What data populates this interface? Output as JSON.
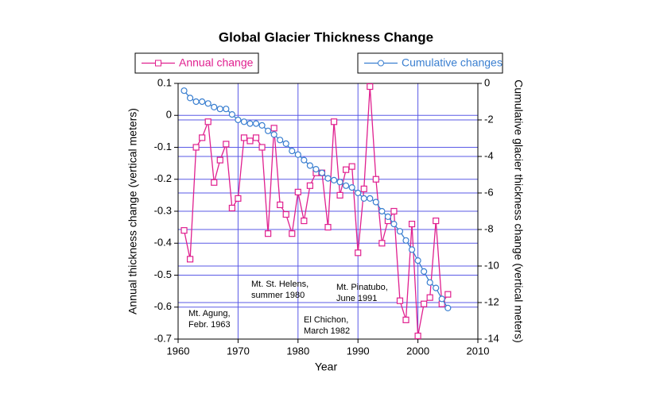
{
  "chart_data": {
    "type": "line",
    "title": "Global Glacier Thickness Change",
    "xlabel": "Year",
    "ylabel": "Annual thickness change (vertical meters)",
    "y2label": "Cumulative glacier thickness change (vertical meters)",
    "x": [
      1961,
      1962,
      1963,
      1964,
      1965,
      1966,
      1967,
      1968,
      1969,
      1970,
      1971,
      1972,
      1973,
      1974,
      1975,
      1976,
      1977,
      1978,
      1979,
      1980,
      1981,
      1982,
      1983,
      1984,
      1985,
      1986,
      1987,
      1988,
      1989,
      1990,
      1991,
      1992,
      1993,
      1994,
      1995,
      1996,
      1997,
      1998,
      1999,
      2000,
      2001,
      2002,
      2003,
      2004,
      2005
    ],
    "series": [
      {
        "name": "Annual change",
        "color": "#e0208f",
        "marker": "square",
        "values": [
          -0.36,
          -0.45,
          -0.1,
          -0.07,
          -0.02,
          -0.21,
          -0.14,
          -0.09,
          -0.29,
          -0.26,
          -0.07,
          -0.08,
          -0.07,
          -0.1,
          -0.37,
          -0.04,
          -0.28,
          -0.31,
          -0.37,
          -0.24,
          -0.33,
          -0.22,
          -0.18,
          -0.18,
          -0.35,
          -0.02,
          -0.25,
          -0.17,
          -0.16,
          -0.43,
          -0.23,
          0.09,
          -0.2,
          -0.4,
          -0.33,
          -0.3,
          -0.58,
          -0.64,
          -0.34,
          -0.69,
          -0.59,
          -0.57,
          -0.33,
          -0.59,
          -0.56
        ]
      },
      {
        "name": "Cumulative changes",
        "color": "#3a7fd0",
        "marker": "circle",
        "axis": "y2",
        "values": [
          -0.4,
          -0.8,
          -1.0,
          -1.0,
          -1.1,
          -1.3,
          -1.4,
          -1.4,
          -1.7,
          -2.0,
          -2.1,
          -2.2,
          -2.2,
          -2.3,
          -2.6,
          -2.8,
          -3.1,
          -3.3,
          -3.7,
          -3.9,
          -4.2,
          -4.5,
          -4.7,
          -4.9,
          -5.2,
          -5.3,
          -5.4,
          -5.6,
          -5.7,
          -6.0,
          -6.3,
          -6.3,
          -6.5,
          -7.0,
          -7.3,
          -7.7,
          -8.1,
          -8.6,
          -9.1,
          -9.7,
          -10.3,
          -10.9,
          -11.2,
          -11.8,
          -12.3
        ]
      }
    ],
    "xlim": [
      1960,
      2010
    ],
    "xticks": [
      1960,
      1970,
      1980,
      1990,
      2000,
      2010
    ],
    "ylim": [
      -0.7,
      0.1
    ],
    "yticks": [
      0.1,
      0,
      -0.1,
      -0.2,
      -0.3,
      -0.4,
      -0.5,
      -0.6,
      -0.7
    ],
    "y2lim": [
      -14,
      0
    ],
    "y2ticks": [
      0,
      -2,
      -4,
      -6,
      -8,
      -10,
      -12,
      -14
    ],
    "grid": true,
    "annotations": [
      [
        "Mt. Agung,",
        "Febr. 1963"
      ],
      [
        "Mt. St. Helens,",
        "summer 1980"
      ],
      [
        "El Chichon,",
        "March 1982"
      ],
      [
        "Mt. Pinatubo,",
        "June 1991"
      ]
    ]
  }
}
